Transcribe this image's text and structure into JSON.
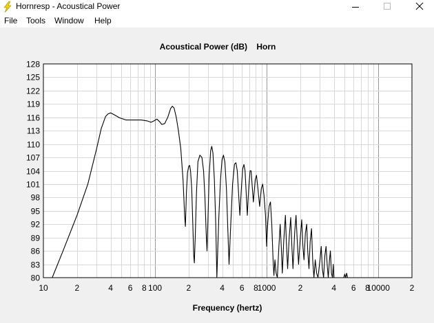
{
  "window": {
    "title": "Hornresp - Acoustical Power",
    "icon": "lightning-bolt-icon",
    "controls": [
      "minimize-icon",
      "maximize-icon",
      "close-icon"
    ]
  },
  "menu": {
    "items": [
      {
        "label": "File"
      },
      {
        "label": "Tools"
      },
      {
        "label": "Window"
      },
      {
        "label": "Help"
      }
    ]
  },
  "colors": {
    "background": "#f0f0f0",
    "plot_bg": "#ffffff",
    "curve": "#000000",
    "grid_major": "#999999",
    "grid_minor": "#d8d8d8",
    "icon": "#f2d200"
  },
  "chart_data": {
    "type": "line",
    "title": "Acoustical Power (dB)    Horn",
    "xlabel": "Frequency (hertz)",
    "ylabel": "",
    "xscale": "log",
    "xlim": [
      10,
      20000
    ],
    "ylim": [
      80,
      128
    ],
    "grid": true,
    "y_ticks": [
      128,
      125,
      122,
      119,
      116,
      113,
      110,
      107,
      104,
      101,
      98,
      95,
      92,
      89,
      86,
      83,
      80
    ],
    "x_ticks": [
      {
        "value": 10,
        "label": "10"
      },
      {
        "value": 20,
        "label": "2"
      },
      {
        "value": 40,
        "label": "4"
      },
      {
        "value": 60,
        "label": "6"
      },
      {
        "value": 80,
        "label": "8"
      },
      {
        "value": 100,
        "label": "100"
      },
      {
        "value": 200,
        "label": "2"
      },
      {
        "value": 400,
        "label": "4"
      },
      {
        "value": 600,
        "label": "6"
      },
      {
        "value": 800,
        "label": "8"
      },
      {
        "value": 1000,
        "label": "1000"
      },
      {
        "value": 2000,
        "label": "2"
      },
      {
        "value": 4000,
        "label": "4"
      },
      {
        "value": 6000,
        "label": "6"
      },
      {
        "value": 8000,
        "label": "8"
      },
      {
        "value": 10000,
        "label": "10000"
      },
      {
        "value": 20000,
        "label": "2"
      }
    ],
    "series": [
      {
        "points": [
          [
            12.0,
            80
          ],
          [
            15,
            86
          ],
          [
            20,
            94
          ],
          [
            25,
            101
          ],
          [
            30,
            109
          ],
          [
            33,
            113.5
          ],
          [
            36,
            116.2
          ],
          [
            38,
            116.8
          ],
          [
            40,
            117.0
          ],
          [
            43,
            116.6
          ],
          [
            48,
            115.9
          ],
          [
            55,
            115.4
          ],
          [
            65,
            115.4
          ],
          [
            75,
            115.4
          ],
          [
            85,
            115.2
          ],
          [
            92,
            114.9
          ],
          [
            98,
            115.2
          ],
          [
            104,
            115.6
          ],
          [
            110,
            115.0
          ],
          [
            115,
            114.4
          ],
          [
            122,
            114.6
          ],
          [
            130,
            116.0
          ],
          [
            138,
            118.0
          ],
          [
            143,
            118.5
          ],
          [
            148,
            118.1
          ],
          [
            155,
            116.0
          ],
          [
            162,
            113.0
          ],
          [
            170,
            109.0
          ],
          [
            178,
            102.0
          ],
          [
            184,
            94.0
          ],
          [
            187,
            91.5
          ],
          [
            191,
            99.0
          ],
          [
            195,
            103.5
          ],
          [
            200,
            105.0
          ],
          [
            204,
            105.2
          ],
          [
            208,
            104.0
          ],
          [
            213,
            100.0
          ],
          [
            218,
            92.0
          ],
          [
            222,
            85.0
          ],
          [
            225,
            83.3
          ],
          [
            229,
            89.0
          ],
          [
            235,
            99.0
          ],
          [
            242,
            106.0
          ],
          [
            252,
            107.5
          ],
          [
            263,
            107.0
          ],
          [
            272,
            104.0
          ],
          [
            280,
            98.0
          ],
          [
            287,
            90.0
          ],
          [
            292,
            86.0
          ],
          [
            297,
            92.0
          ],
          [
            305,
            103.0
          ],
          [
            315,
            108.5
          ],
          [
            322,
            109.5
          ],
          [
            330,
            108.0
          ],
          [
            340,
            102.0
          ],
          [
            350,
            92.0
          ],
          [
            358,
            80.0
          ],
          [
            372,
            93.0
          ],
          [
            386,
            102.0
          ],
          [
            398,
            106.5
          ],
          [
            410,
            107.5
          ],
          [
            422,
            106.0
          ],
          [
            436,
            100.0
          ],
          [
            450,
            90.0
          ],
          [
            460,
            83.0
          ],
          [
            475,
            91.0
          ],
          [
            495,
            101.0
          ],
          [
            515,
            105.5
          ],
          [
            530,
            105.8
          ],
          [
            545,
            104.0
          ],
          [
            560,
            99.0
          ],
          [
            575,
            94.0
          ],
          [
            590,
            99.0
          ],
          [
            610,
            104.5
          ],
          [
            625,
            105.4
          ],
          [
            640,
            104.0
          ],
          [
            655,
            99.0
          ],
          [
            670,
            94.0
          ],
          [
            690,
            100.0
          ],
          [
            710,
            104.0
          ],
          [
            725,
            104.0
          ],
          [
            740,
            101.0
          ],
          [
            760,
            97.0
          ],
          [
            790,
            102.0
          ],
          [
            810,
            103.0
          ],
          [
            835,
            100.0
          ],
          [
            865,
            96.0
          ],
          [
            895,
            100.0
          ],
          [
            920,
            101.0
          ],
          [
            945,
            98.5
          ],
          [
            975,
            94.0
          ],
          [
            1000,
            87.0
          ],
          [
            1020,
            92.0
          ],
          [
            1050,
            96.0
          ],
          [
            1080,
            97.0
          ],
          [
            1110,
            92.0
          ],
          [
            1140,
            84.0
          ],
          [
            1160,
            80.5
          ],
          [
            1185,
            84.0
          ],
          [
            1215,
            81.0
          ],
          [
            1245,
            80.0
          ],
          [
            1280,
            86.0
          ],
          [
            1320,
            92.0
          ],
          [
            1350,
            87.0
          ],
          [
            1380,
            81.0
          ],
          [
            1420,
            88.0
          ],
          [
            1470,
            94.0
          ],
          [
            1500,
            88.0
          ],
          [
            1540,
            82.0
          ],
          [
            1590,
            89.0
          ],
          [
            1640,
            93.5
          ],
          [
            1680,
            87.0
          ],
          [
            1720,
            82.0
          ],
          [
            1780,
            90.0
          ],
          [
            1830,
            94.0
          ],
          [
            1880,
            88.0
          ],
          [
            1930,
            83.0
          ],
          [
            2000,
            89.0
          ],
          [
            2060,
            93.0
          ],
          [
            2110,
            87.0
          ],
          [
            2160,
            84.0
          ],
          [
            2220,
            90.0
          ],
          [
            2280,
            92.0
          ],
          [
            2330,
            86.0
          ],
          [
            2390,
            82.0
          ],
          [
            2450,
            88.0
          ],
          [
            2520,
            91.0
          ],
          [
            2580,
            84.0
          ],
          [
            2650,
            80.0
          ],
          [
            2720,
            84.0
          ],
          [
            2800,
            81.0
          ],
          [
            2880,
            80.0
          ],
          [
            3000,
            84.0
          ],
          [
            3080,
            87.0
          ],
          [
            3150,
            82.0
          ],
          [
            3230,
            80.0
          ],
          [
            3320,
            85.0
          ],
          [
            3400,
            87.0
          ],
          [
            3480,
            83.0
          ],
          [
            3560,
            80.0
          ],
          [
            3650,
            84.0
          ],
          [
            3720,
            86.0
          ],
          [
            3800,
            81.0
          ],
          [
            3880,
            80.0
          ],
          [
            3950,
            83.0
          ],
          [
            4000,
            80.0
          ]
        ]
      },
      {
        "points": [
          [
            4900,
            80.0
          ],
          [
            5000,
            80.8
          ],
          [
            5100,
            80.0
          ],
          [
            5200,
            81.0
          ],
          [
            5300,
            80.0
          ]
        ]
      }
    ]
  }
}
